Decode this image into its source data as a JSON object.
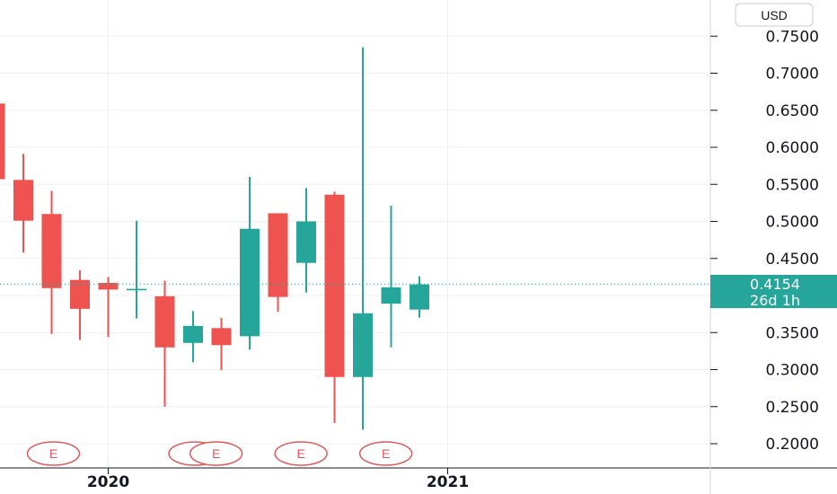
{
  "currency": "USD",
  "colors": {
    "up": "#26a69a",
    "down": "#ef5350",
    "grid": "#eef0f3",
    "axis": "#131722",
    "event": "#e05a5a"
  },
  "price_tag": {
    "price": "0.4154",
    "countdown": "26d 1h"
  },
  "chart_data": {
    "type": "candlestick",
    "title": "",
    "xlabel": "",
    "ylabel": "",
    "ylim": [
      0.18,
      0.78
    ],
    "y_ticks": [
      "0.2000",
      "0.2500",
      "0.3000",
      "0.3500",
      "0.4000",
      "0.4500",
      "0.5000",
      "0.5500",
      "0.6000",
      "0.6500",
      "0.7000",
      "0.7500"
    ],
    "x_ticks": [
      {
        "label": "2020",
        "t": 4
      },
      {
        "label": "2021",
        "t": 16
      }
    ],
    "last_price": 0.4154,
    "candles": [
      {
        "t": 0,
        "open": 0.659,
        "high": 0.688,
        "low": 0.548,
        "close": 0.557
      },
      {
        "t": 1,
        "open": 0.556,
        "high": 0.591,
        "low": 0.458,
        "close": 0.501
      },
      {
        "t": 2,
        "open": 0.51,
        "high": 0.541,
        "low": 0.348,
        "close": 0.41
      },
      {
        "t": 3,
        "open": 0.421,
        "high": 0.434,
        "low": 0.34,
        "close": 0.382
      },
      {
        "t": 4,
        "open": 0.417,
        "high": 0.425,
        "low": 0.344,
        "close": 0.408
      },
      {
        "t": 5,
        "open": 0.407,
        "high": 0.501,
        "low": 0.369,
        "close": 0.409
      },
      {
        "t": 6,
        "open": 0.399,
        "high": 0.42,
        "low": 0.25,
        "close": 0.33
      },
      {
        "t": 7,
        "open": 0.336,
        "high": 0.379,
        "low": 0.31,
        "close": 0.359
      },
      {
        "t": 8,
        "open": 0.356,
        "high": 0.37,
        "low": 0.299,
        "close": 0.333
      },
      {
        "t": 9,
        "open": 0.345,
        "high": 0.56,
        "low": 0.327,
        "close": 0.49
      },
      {
        "t": 10,
        "open": 0.511,
        "high": 0.511,
        "low": 0.378,
        "close": 0.398
      },
      {
        "t": 11,
        "open": 0.444,
        "high": 0.545,
        "low": 0.404,
        "close": 0.5
      },
      {
        "t": 12,
        "open": 0.536,
        "high": 0.54,
        "low": 0.228,
        "close": 0.29
      },
      {
        "t": 13,
        "open": 0.29,
        "high": 0.735,
        "low": 0.219,
        "close": 0.376
      },
      {
        "t": 14,
        "open": 0.389,
        "high": 0.521,
        "low": 0.33,
        "close": 0.411
      },
      {
        "t": 15,
        "open": 0.381,
        "high": 0.426,
        "low": 0.37,
        "close": 0.415
      }
    ],
    "events": [
      {
        "label": "E",
        "t": 2
      },
      {
        "label": "E",
        "t": 7
      },
      {
        "label": "E",
        "t": 7.75
      },
      {
        "label": "E",
        "t": 10.75
      },
      {
        "label": "E",
        "t": 13.75
      }
    ]
  }
}
